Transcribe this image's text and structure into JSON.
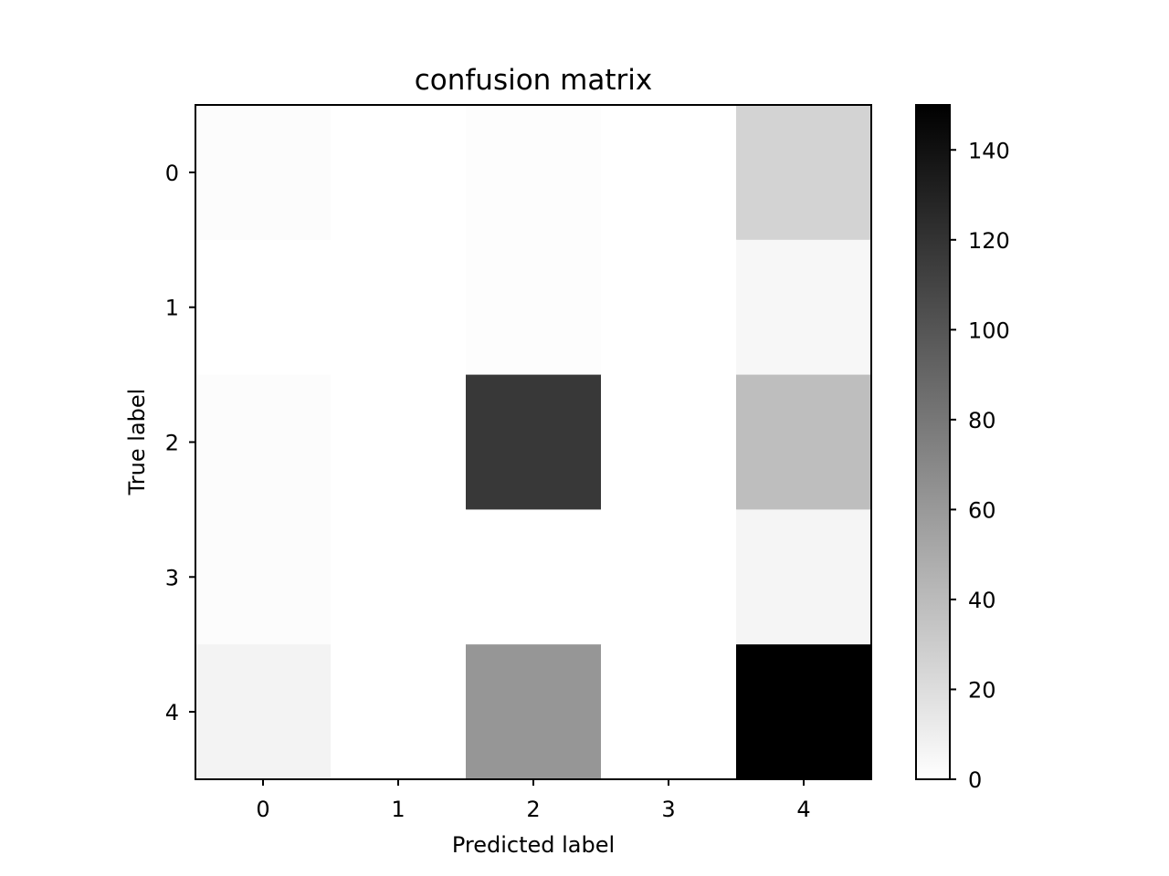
{
  "chart_data": {
    "type": "heatmap",
    "title": "confusion matrix",
    "xlabel": "Predicted label",
    "ylabel": "True label",
    "x_categories": [
      "0",
      "1",
      "2",
      "3",
      "4"
    ],
    "y_categories": [
      "0",
      "1",
      "2",
      "3",
      "4"
    ],
    "values": [
      [
        2,
        0,
        1,
        0,
        26
      ],
      [
        0,
        0,
        1,
        0,
        5
      ],
      [
        2,
        0,
        117,
        0,
        38
      ],
      [
        2,
        0,
        0,
        0,
        6
      ],
      [
        7,
        0,
        62,
        0,
        150
      ]
    ],
    "colormap": "gray_r",
    "colorbar": {
      "min": 0,
      "max": 150,
      "ticks": [
        0,
        20,
        40,
        60,
        80,
        100,
        120,
        140
      ]
    },
    "grid": false
  }
}
